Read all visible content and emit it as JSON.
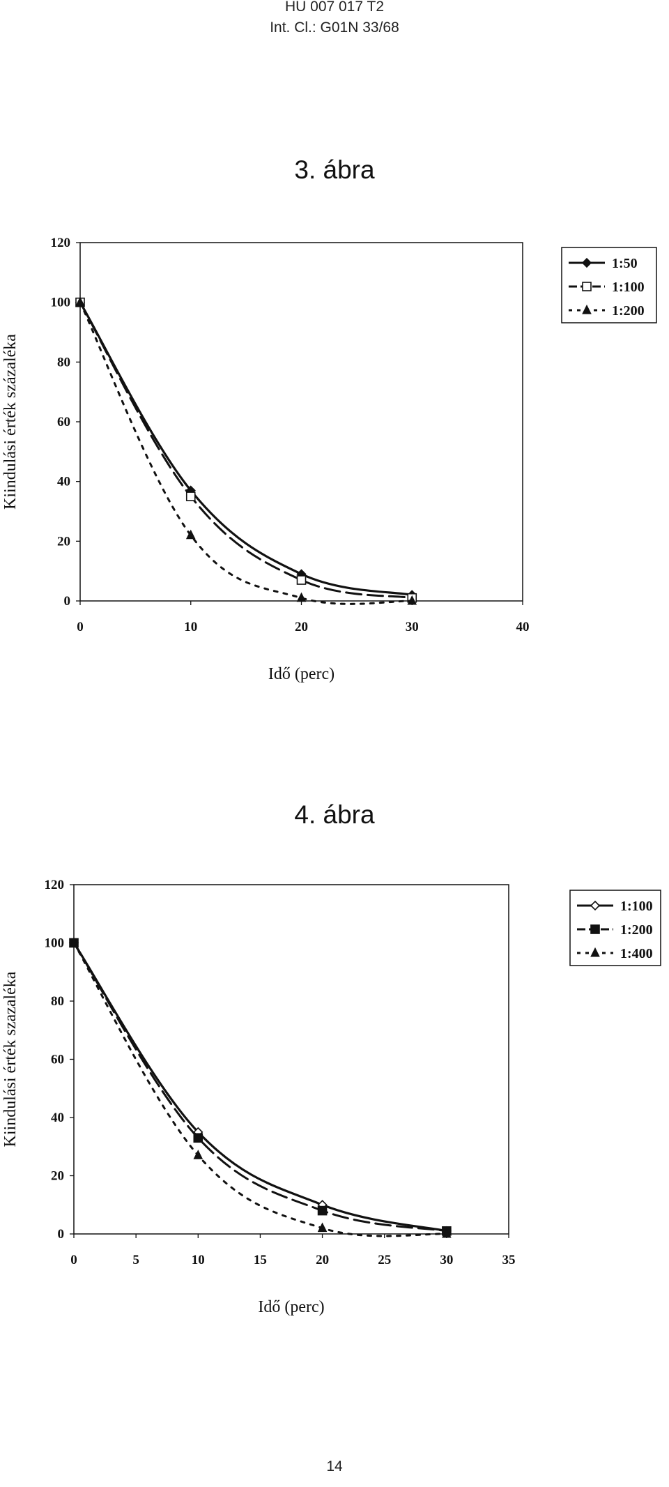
{
  "header": {
    "patent_number": "HU 007 017 T2",
    "classification": "Int. Cl.: G01N 33/68"
  },
  "page_number": "14",
  "chart_data": [
    {
      "figure_label": "3. ábra",
      "type": "line",
      "xlabel": "Idő (perc)",
      "ylabel": "Kiindulási érték százaléka",
      "xlim": [
        0,
        40
      ],
      "ylim": [
        0,
        120
      ],
      "xticks": [
        "0",
        "10",
        "20",
        "30",
        "40"
      ],
      "yticks": [
        "0",
        "20",
        "40",
        "60",
        "80",
        "100",
        "120"
      ],
      "grid": false,
      "legend_position": "top-right outside",
      "series": [
        {
          "name": "1:50",
          "x": [
            0,
            10,
            20,
            30
          ],
          "y": [
            100,
            37,
            9,
            2
          ],
          "line": "solid",
          "marker": "diamond-filled"
        },
        {
          "name": "1:100",
          "x": [
            0,
            10,
            20,
            30
          ],
          "y": [
            100,
            35,
            7,
            1
          ],
          "line": "dashed",
          "marker": "square-open"
        },
        {
          "name": "1:200",
          "x": [
            0,
            10,
            20,
            30
          ],
          "y": [
            100,
            22,
            1,
            0
          ],
          "line": "dotted",
          "marker": "triangle-filled"
        }
      ]
    },
    {
      "figure_label": "4. ábra",
      "type": "line",
      "xlabel": "Idő (perc)",
      "ylabel": "Kiindulási érték szazaléka",
      "xlim": [
        0,
        35
      ],
      "ylim": [
        0,
        120
      ],
      "xticks": [
        "0",
        "5",
        "10",
        "15",
        "20",
        "25",
        "30",
        "35"
      ],
      "yticks": [
        "0",
        "20",
        "40",
        "60",
        "80",
        "100",
        "120"
      ],
      "grid": false,
      "legend_position": "top-right outside",
      "series": [
        {
          "name": "1:100",
          "x": [
            0,
            10,
            20,
            30
          ],
          "y": [
            100,
            35,
            10,
            1
          ],
          "line": "solid",
          "marker": "diamond-open"
        },
        {
          "name": "1:200",
          "x": [
            0,
            10,
            20,
            30
          ],
          "y": [
            100,
            33,
            8,
            1
          ],
          "line": "dashed",
          "marker": "square-filled"
        },
        {
          "name": "1:400",
          "x": [
            0,
            10,
            20,
            30
          ],
          "y": [
            100,
            27,
            2,
            0
          ],
          "line": "dotted",
          "marker": "triangle-filled"
        }
      ]
    }
  ]
}
